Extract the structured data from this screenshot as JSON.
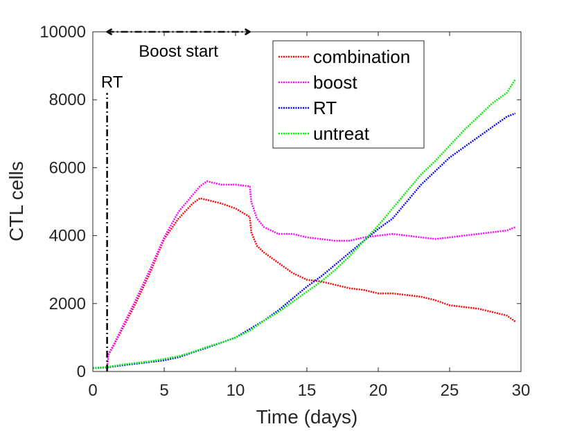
{
  "chart_data": {
    "type": "line",
    "title": "",
    "xlabel": "Time (days)",
    "ylabel": "CTL cells",
    "xlim": [
      0,
      30
    ],
    "ylim": [
      0,
      10000
    ],
    "xticks": [
      0,
      5,
      10,
      15,
      20,
      25,
      30
    ],
    "yticks": [
      0,
      2000,
      4000,
      6000,
      8000,
      10000
    ],
    "xtick_labels": [
      "0",
      "5",
      "10",
      "15",
      "20",
      "25",
      "30"
    ],
    "ytick_labels": [
      "0",
      "2000",
      "4000",
      "6000",
      "8000",
      "10000"
    ],
    "grid": false,
    "legend_position": "top-right",
    "series": [
      {
        "name": "combination",
        "color": "#ff0000",
        "x": [
          0,
          0.5,
          1.0,
          1.1,
          1.5,
          2.0,
          3.0,
          4.0,
          5.0,
          6.0,
          7.0,
          7.5,
          8.0,
          9.0,
          10.0,
          11.0,
          11.1,
          11.5,
          12.0,
          12.5,
          13.0,
          14.0,
          15.0,
          16.0,
          17.0,
          18.0,
          19.0,
          20.0,
          21.0,
          22.0,
          23.0,
          24.0,
          25.0,
          26.0,
          27.0,
          28.0,
          29.0,
          29.6
        ],
        "y": [
          100,
          110,
          130,
          500,
          800,
          1200,
          2000,
          2900,
          3900,
          4500,
          4950,
          5100,
          5050,
          4950,
          4800,
          4550,
          4100,
          3700,
          3500,
          3350,
          3200,
          2900,
          2700,
          2650,
          2550,
          2450,
          2400,
          2300,
          2300,
          2250,
          2200,
          2100,
          1950,
          1900,
          1850,
          1750,
          1650,
          1470
        ]
      },
      {
        "name": "boost",
        "color": "#ff00ff",
        "x": [
          0,
          0.5,
          1.0,
          1.1,
          1.5,
          2.0,
          3.0,
          4.0,
          5.0,
          6.0,
          7.0,
          7.5,
          8.0,
          9.0,
          10.0,
          11.0,
          11.1,
          11.5,
          12.0,
          13.0,
          14.0,
          15.0,
          16.0,
          17.0,
          18.0,
          19.0,
          20.0,
          21.0,
          22.0,
          23.0,
          24.0,
          25.0,
          26.0,
          27.0,
          28.0,
          29.0,
          29.6
        ],
        "y": [
          100,
          110,
          130,
          520,
          820,
          1250,
          2100,
          3000,
          3950,
          4700,
          5200,
          5450,
          5600,
          5500,
          5500,
          5450,
          5000,
          4500,
          4250,
          4050,
          4050,
          3950,
          3900,
          3850,
          3850,
          3950,
          4000,
          4050,
          4000,
          3950,
          3900,
          3950,
          4000,
          4050,
          4100,
          4150,
          4250
        ]
      },
      {
        "name": "RT",
        "color": "#0000ff",
        "x": [
          0,
          1,
          2,
          3,
          4,
          5,
          6,
          7,
          8,
          9,
          10,
          11,
          12,
          13,
          14,
          15,
          16,
          17,
          18,
          19,
          20,
          21,
          22,
          23,
          24,
          25,
          26,
          27,
          28,
          29,
          29.6
        ],
        "y": [
          100,
          120,
          180,
          230,
          280,
          330,
          420,
          560,
          700,
          850,
          1000,
          1250,
          1500,
          1800,
          2150,
          2500,
          2800,
          3150,
          3500,
          3850,
          4200,
          4500,
          5000,
          5500,
          5900,
          6300,
          6600,
          6900,
          7200,
          7500,
          7600
        ]
      },
      {
        "name": "untreat",
        "color": "#00ee00",
        "x": [
          0,
          1,
          2,
          3,
          4,
          5,
          6,
          7,
          8,
          9,
          10,
          11,
          12,
          13,
          14,
          15,
          16,
          17,
          18,
          19,
          20,
          21,
          22,
          23,
          24,
          25,
          26,
          27,
          28,
          29,
          29.6
        ],
        "y": [
          100,
          130,
          200,
          250,
          300,
          370,
          450,
          570,
          720,
          850,
          1000,
          1200,
          1500,
          1750,
          2050,
          2350,
          2650,
          3000,
          3400,
          3850,
          4300,
          4800,
          5300,
          5800,
          6200,
          6650,
          7100,
          7500,
          7900,
          8200,
          8600
        ]
      }
    ],
    "annotations": {
      "rt_label": "RT",
      "rt_day": 1,
      "rt_line_top": 8200,
      "boost_label": "Boost start",
      "boost_range": [
        1,
        11
      ],
      "boost_level": 10000
    }
  }
}
